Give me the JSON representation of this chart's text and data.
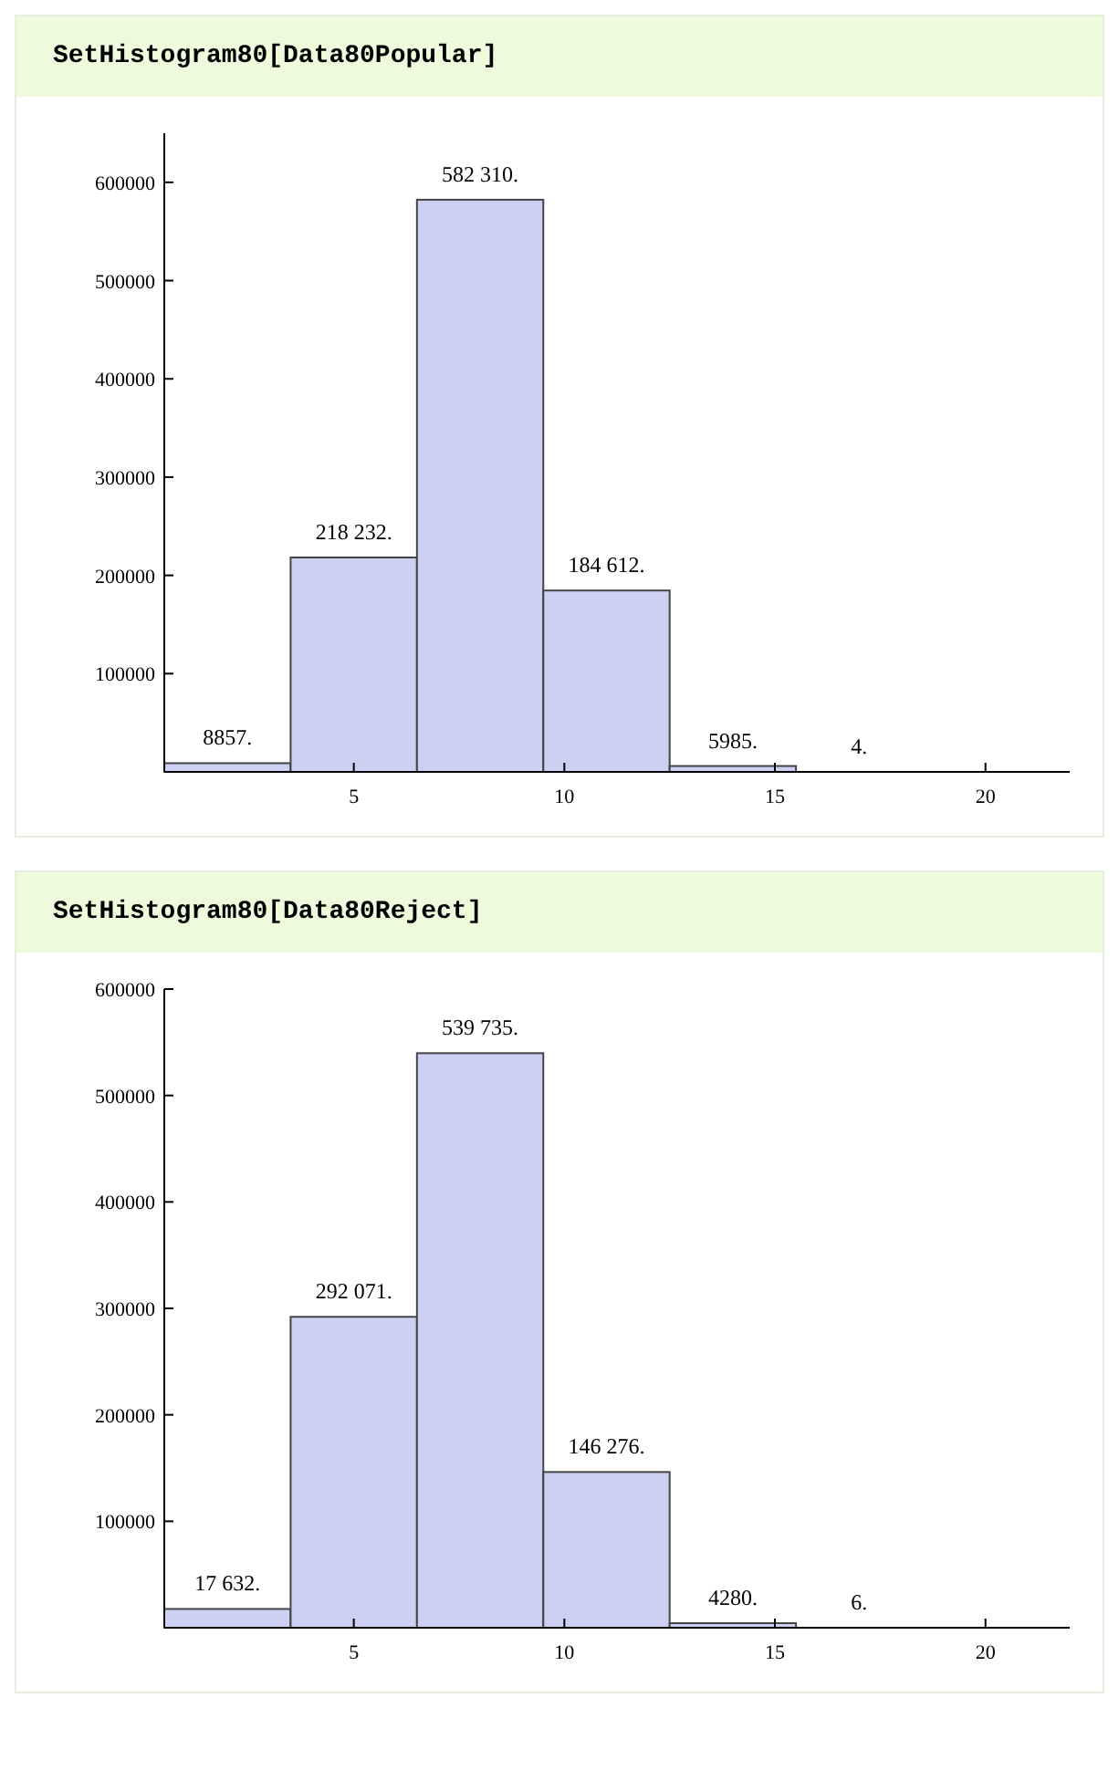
{
  "chart_data": [
    {
      "type": "histogram",
      "title": "SetHistogram80[Data80Popular]",
      "bins": [
        0.5,
        3.5,
        6.5,
        9.5,
        12.5,
        15.5,
        18.5
      ],
      "values": [
        8857,
        218232,
        582310,
        184612,
        5985,
        4
      ],
      "value_labels": [
        "8857.",
        "218 232.",
        "582 310.",
        "184 612.",
        "5985.",
        "4."
      ],
      "color": "#ccd1f3",
      "xlim": [
        0.5,
        22
      ],
      "xticks": [
        5,
        10,
        15,
        20
      ],
      "ylim": [
        0,
        650000
      ],
      "yticks": [
        100000,
        200000,
        300000,
        400000,
        500000,
        600000
      ],
      "grid": false
    },
    {
      "type": "histogram",
      "title": "SetHistogram80[Data80Reject]",
      "bins": [
        0.5,
        3.5,
        6.5,
        9.5,
        12.5,
        15.5,
        18.5
      ],
      "values": [
        17632,
        292071,
        539735,
        146276,
        4280,
        6
      ],
      "value_labels": [
        "17 632.",
        "292 071.",
        "539 735.",
        "146 276.",
        "4280.",
        "6."
      ],
      "color": "#ccd1f3",
      "xlim": [
        0.5,
        22
      ],
      "xticks": [
        5,
        10,
        15,
        20
      ],
      "ylim": [
        0,
        600000
      ],
      "yticks": [
        100000,
        200000,
        300000,
        400000,
        500000,
        600000
      ],
      "grid": false
    }
  ]
}
